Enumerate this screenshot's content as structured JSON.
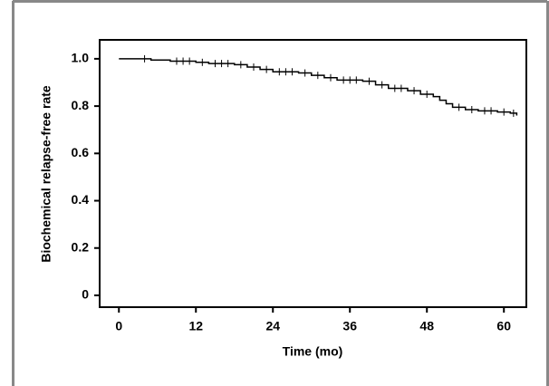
{
  "chart_data": {
    "type": "line",
    "step": true,
    "x_label": "Time (mo)",
    "y_label": "Biochemical relapse-free rate",
    "xlim": [
      -3,
      63.5
    ],
    "ylim": [
      -0.05,
      1.08
    ],
    "xticks": [
      0,
      12,
      24,
      36,
      48,
      60
    ],
    "yticks": [
      0,
      0.2,
      0.4,
      0.6,
      0.8,
      {
        "value": 1,
        "label": "1.0"
      }
    ],
    "grid": false,
    "series": [
      {
        "color": "#000000",
        "x": [
          0,
          5,
          8,
          12,
          14,
          18,
          20,
          22,
          24,
          28,
          30,
          32,
          34,
          38,
          40,
          42,
          45,
          47,
          49,
          50,
          51,
          52,
          54,
          56,
          59,
          61,
          62
        ],
        "values": [
          1.0,
          0.995,
          0.99,
          0.985,
          0.98,
          0.975,
          0.965,
          0.955,
          0.945,
          0.94,
          0.93,
          0.92,
          0.91,
          0.905,
          0.89,
          0.875,
          0.865,
          0.85,
          0.84,
          0.825,
          0.81,
          0.795,
          0.785,
          0.78,
          0.775,
          0.77,
          0.76
        ],
        "censored": [
          4,
          9,
          10,
          11,
          13,
          15,
          16,
          17,
          19,
          21,
          23,
          25,
          26,
          27,
          29,
          31,
          33,
          35,
          36,
          37,
          39,
          41,
          43,
          44,
          46,
          48,
          53,
          55,
          57,
          58,
          60,
          61.5
        ]
      }
    ]
  }
}
